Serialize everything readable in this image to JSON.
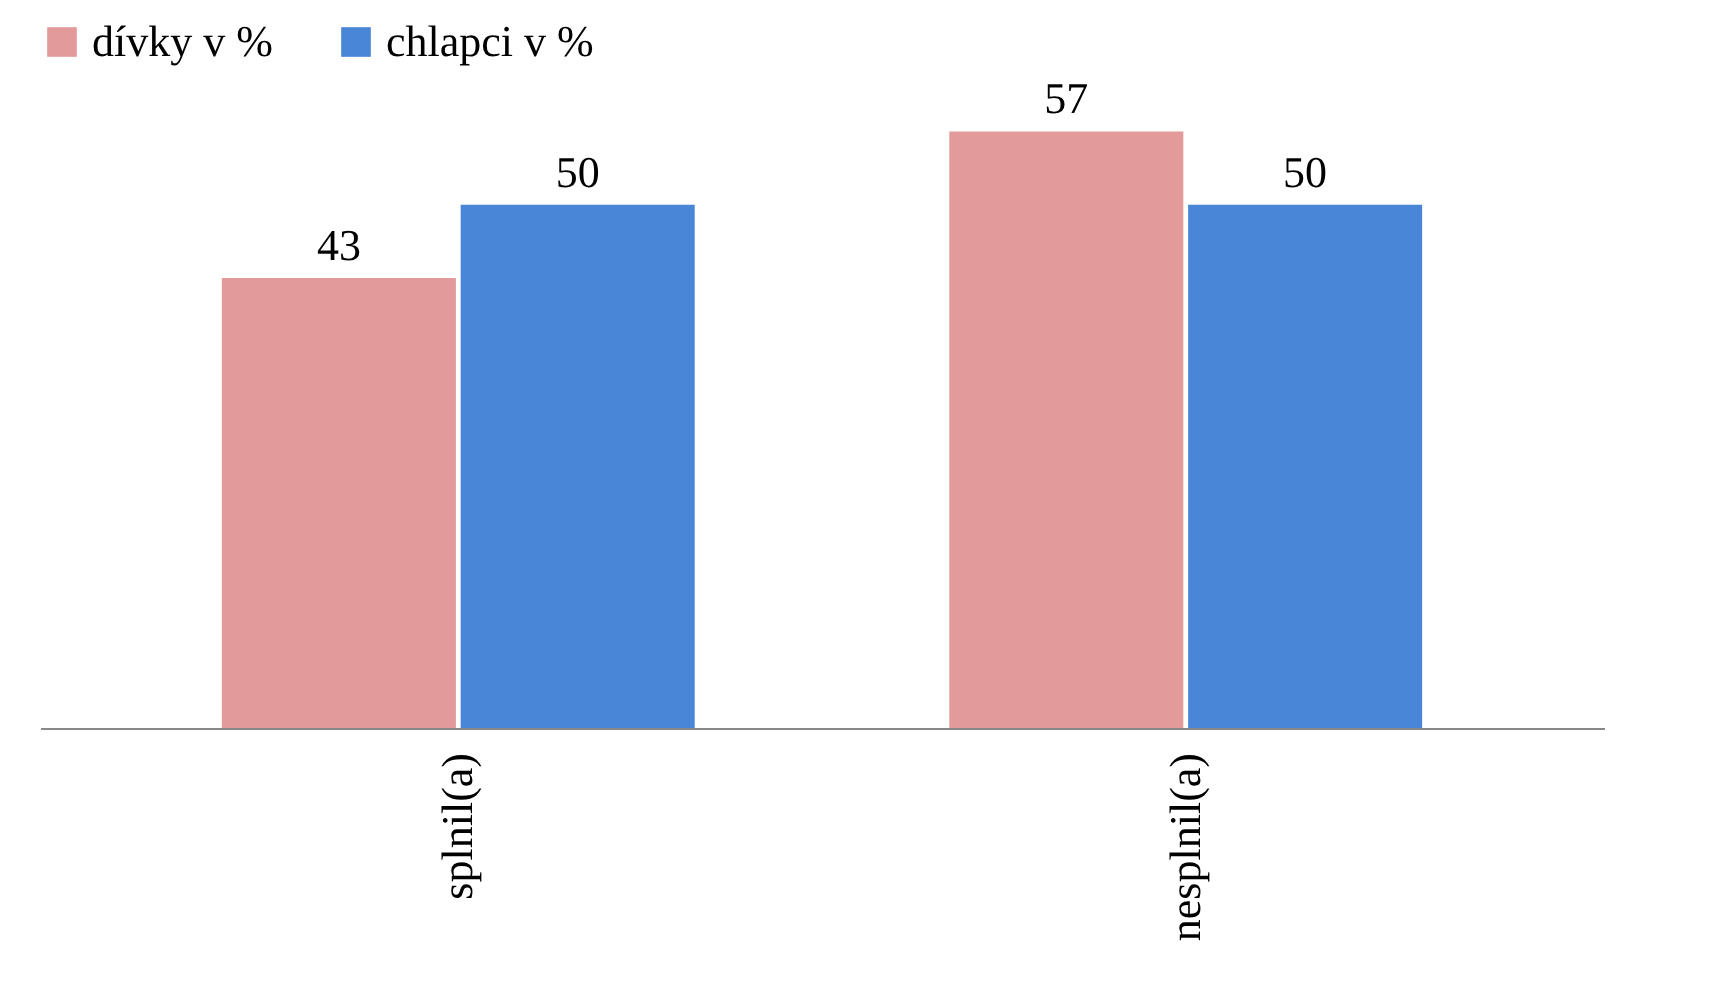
{
  "chart_data": {
    "type": "bar",
    "categories": [
      "splnil(a)",
      "nesplnil(a)"
    ],
    "series": [
      {
        "name": "dívky v %",
        "color": "#e39a9b",
        "values": [
          43,
          57
        ]
      },
      {
        "name": "chlapci v %",
        "color": "#4a86d8",
        "values": [
          50,
          50
        ]
      }
    ],
    "data_labels": true,
    "legend": "top"
  }
}
